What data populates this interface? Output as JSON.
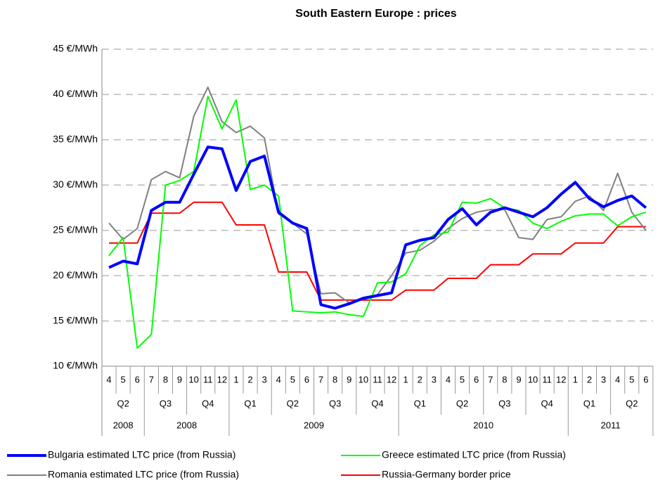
{
  "chart_data": {
    "type": "line",
    "title": "South Eastern Europe : prices",
    "categories": [
      "4",
      "5",
      "6",
      "7",
      "8",
      "9",
      "10",
      "11",
      "12",
      "1",
      "2",
      "3",
      "4",
      "5",
      "6",
      "7",
      "8",
      "9",
      "10",
      "11",
      "12",
      "1",
      "2",
      "3",
      "4",
      "5",
      "6",
      "7",
      "8",
      "9",
      "10",
      "11",
      "12",
      "1",
      "2",
      "3",
      "4",
      "5",
      "6"
    ],
    "quarters": [
      "Q2",
      "Q3",
      "Q4",
      "Q1",
      "Q2",
      "Q3",
      "Q4",
      "Q1",
      "Q2",
      "Q3",
      "Q4",
      "Q1",
      "Q2"
    ],
    "years": [
      {
        "label": "2008",
        "span": 3
      },
      {
        "label": "2008",
        "span": 6
      },
      {
        "label": "2009",
        "span": 12
      },
      {
        "label": "2010",
        "span": 12
      },
      {
        "label": "2011",
        "span": 6
      }
    ],
    "ylim": [
      10,
      45
    ],
    "yticks": [
      {
        "value": 10,
        "label": "10 €/MWh"
      },
      {
        "value": 15,
        "label": "15 €/MWh"
      },
      {
        "value": 20,
        "label": "20 €/MWh"
      },
      {
        "value": 25,
        "label": "25 €/MWh"
      },
      {
        "value": 30,
        "label": "30 €/MWh"
      },
      {
        "value": 35,
        "label": "35 €/MWh"
      },
      {
        "value": 40,
        "label": "40 €/MWh"
      },
      {
        "value": 45,
        "label": "45 €/MWh"
      }
    ],
    "grid": true,
    "legend": "bottom",
    "series": [
      {
        "name": "Bulgaria estimated LTC price (from Russia)",
        "color": "#0000ff",
        "width": 4,
        "values": [
          20.9,
          21.6,
          21.3,
          27.2,
          28.1,
          28.1,
          31.2,
          34.2,
          34.0,
          29.4,
          32.6,
          33.2,
          27.0,
          25.8,
          25.2,
          16.8,
          16.4,
          16.9,
          17.5,
          17.8,
          18.1,
          23.4,
          23.9,
          24.2,
          26.2,
          27.4,
          25.6,
          27.0,
          27.5,
          27.0,
          26.5,
          27.5,
          29.0,
          30.3,
          28.5,
          27.6,
          28.3,
          28.8,
          27.5
        ]
      },
      {
        "name": "Greece estimated LTC price (from Russia)",
        "color": "#00ff00",
        "width": 2,
        "values": [
          22.2,
          24.2,
          12.0,
          13.5,
          30.0,
          30.5,
          31.5,
          39.8,
          36.2,
          39.4,
          29.5,
          30.0,
          28.8,
          16.1,
          16.0,
          15.9,
          16.0,
          15.7,
          15.5,
          19.2,
          19.3,
          20.2,
          23.3,
          24.5,
          24.8,
          28.1,
          28.0,
          28.5,
          27.5,
          27.2,
          25.8,
          25.2,
          26.0,
          26.6,
          26.8,
          26.8,
          25.5,
          26.5,
          27.0
        ]
      },
      {
        "name": "Romania estimated LTC price (from Russia)",
        "color": "#808080",
        "width": 2,
        "values": [
          25.8,
          24.0,
          25.2,
          30.6,
          31.5,
          30.8,
          37.6,
          40.8,
          37.0,
          35.8,
          36.5,
          35.2,
          26.8,
          25.8,
          24.6,
          18.0,
          18.1,
          17.0,
          17.6,
          17.9,
          20.0,
          22.5,
          22.8,
          23.8,
          25.2,
          26.3,
          27.0,
          27.3,
          27.3,
          24.2,
          24.0,
          26.2,
          26.5,
          28.2,
          28.8,
          27.2,
          31.3,
          27.0,
          25.0
        ]
      },
      {
        "name": "Russia-Germany border price",
        "color": "#ff0000",
        "width": 2,
        "values": [
          23.6,
          23.6,
          23.6,
          26.9,
          26.9,
          26.9,
          28.1,
          28.1,
          28.1,
          25.6,
          25.6,
          25.6,
          20.4,
          20.4,
          20.4,
          17.3,
          17.3,
          17.3,
          17.3,
          17.3,
          17.3,
          18.4,
          18.4,
          18.4,
          19.7,
          19.7,
          19.7,
          21.2,
          21.2,
          21.2,
          22.4,
          22.4,
          22.4,
          23.6,
          23.6,
          23.6,
          25.4,
          25.4,
          25.4
        ]
      }
    ]
  }
}
